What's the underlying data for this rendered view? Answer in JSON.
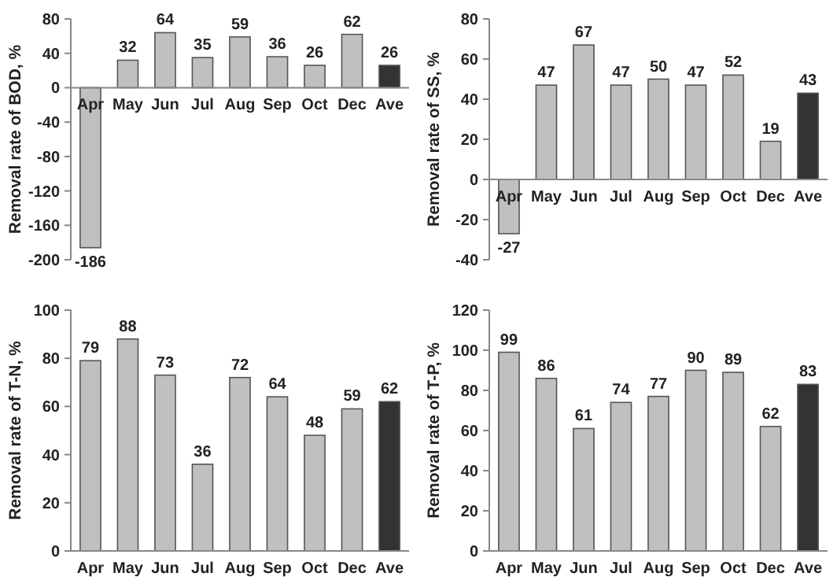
{
  "chart_data": [
    {
      "type": "bar",
      "ylabel": "Removal rate of BOD, %",
      "categories": [
        "Apr",
        "May",
        "Jun",
        "Jul",
        "Aug",
        "Sep",
        "Oct",
        "Dec",
        "Ave"
      ],
      "values": [
        -186,
        32,
        64,
        35,
        59,
        36,
        26,
        62,
        26
      ],
      "colors": [
        "#c0c0c0",
        "#c0c0c0",
        "#c0c0c0",
        "#c0c0c0",
        "#c0c0c0",
        "#c0c0c0",
        "#c0c0c0",
        "#c0c0c0",
        "#333333"
      ],
      "ylim": [
        -200,
        80
      ],
      "yticks": [
        -200,
        -160,
        -120,
        -80,
        -40,
        0,
        40,
        80
      ],
      "data_labels": true
    },
    {
      "type": "bar",
      "ylabel": "Removal rate of SS, %",
      "categories": [
        "Apr",
        "May",
        "Jun",
        "Jul",
        "Aug",
        "Sep",
        "Oct",
        "Dec",
        "Ave"
      ],
      "values": [
        -27,
        47,
        67,
        47,
        50,
        47,
        52,
        19,
        43
      ],
      "colors": [
        "#c0c0c0",
        "#c0c0c0",
        "#c0c0c0",
        "#c0c0c0",
        "#c0c0c0",
        "#c0c0c0",
        "#c0c0c0",
        "#c0c0c0",
        "#333333"
      ],
      "ylim": [
        -40,
        80
      ],
      "yticks": [
        -40,
        -20,
        0,
        20,
        40,
        60,
        80
      ],
      "data_labels": true
    },
    {
      "type": "bar",
      "ylabel": "Removal rate of T-N, %",
      "categories": [
        "Apr",
        "May",
        "Jun",
        "Jul",
        "Aug",
        "Sep",
        "Oct",
        "Dec",
        "Ave"
      ],
      "values": [
        79,
        88,
        73,
        36,
        72,
        64,
        48,
        59,
        62
      ],
      "colors": [
        "#c0c0c0",
        "#c0c0c0",
        "#c0c0c0",
        "#c0c0c0",
        "#c0c0c0",
        "#c0c0c0",
        "#c0c0c0",
        "#c0c0c0",
        "#333333"
      ],
      "ylim": [
        0,
        100
      ],
      "yticks": [
        0,
        20,
        40,
        60,
        80,
        100
      ],
      "data_labels": true
    },
    {
      "type": "bar",
      "ylabel": "Removal rate of T-P, %",
      "categories": [
        "Apr",
        "May",
        "Jun",
        "Jul",
        "Aug",
        "Sep",
        "Oct",
        "Dec",
        "Ave"
      ],
      "values": [
        99,
        86,
        61,
        74,
        77,
        90,
        89,
        62,
        83
      ],
      "colors": [
        "#c0c0c0",
        "#c0c0c0",
        "#c0c0c0",
        "#c0c0c0",
        "#c0c0c0",
        "#c0c0c0",
        "#c0c0c0",
        "#c0c0c0",
        "#333333"
      ],
      "ylim": [
        0,
        120
      ],
      "yticks": [
        0,
        20,
        40,
        60,
        80,
        100,
        120
      ],
      "data_labels": true
    }
  ]
}
